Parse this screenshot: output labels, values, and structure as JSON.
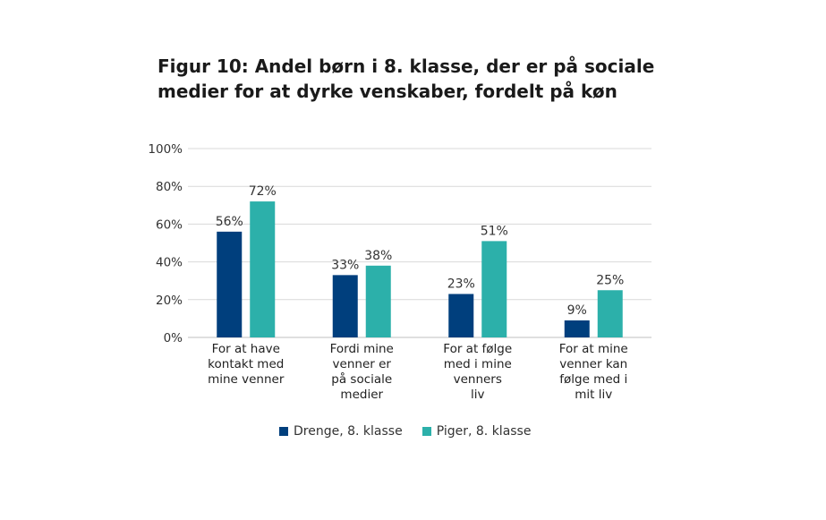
{
  "chart_data": {
    "type": "bar",
    "title_lines": [
      "Figur 10: Andel børn i 8. klasse, der er på sociale",
      "medier for at dyrke venskaber, fordelt på køn"
    ],
    "categories": [
      [
        "For at have",
        "kontakt med",
        "mine venner"
      ],
      [
        "Fordi mine",
        "venner er",
        "på sociale",
        "medier"
      ],
      [
        "For at følge",
        "med i mine",
        "venners",
        "liv"
      ],
      [
        "For at mine",
        "venner kan",
        "følge med i",
        "mit liv"
      ]
    ],
    "series": [
      {
        "name": "Drenge, 8. klasse",
        "values": [
          56,
          33,
          23,
          9
        ],
        "labels": [
          "56%",
          "33%",
          "23%",
          "9%"
        ],
        "color": "#003f7d"
      },
      {
        "name": "Piger, 8. klasse",
        "values": [
          72,
          38,
          51,
          25
        ],
        "labels": [
          "72%",
          "38%",
          "51%",
          "25%"
        ],
        "color": "#2cb0aa"
      }
    ],
    "yticks": [
      "0%",
      "20%",
      "40%",
      "60%",
      "80%",
      "100%"
    ],
    "ylim": [
      0,
      100
    ],
    "grid": true,
    "legend_position": "bottom"
  }
}
